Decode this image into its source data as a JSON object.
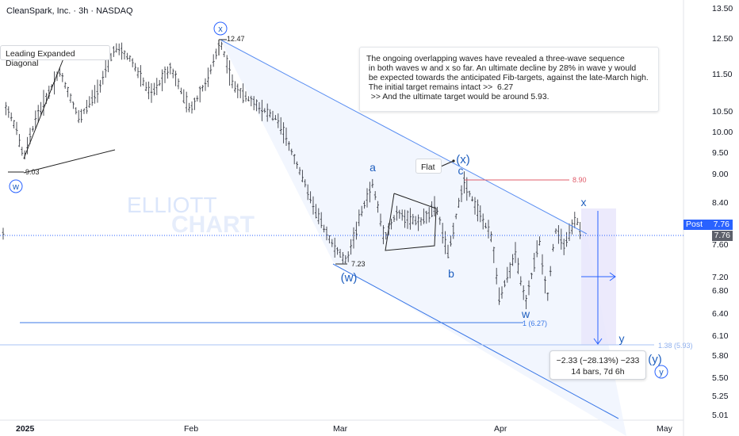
{
  "header": {
    "title": "CleanSpark, Inc. · 3h · NASDAQ"
  },
  "colors": {
    "wave_blue": "#1f5fbf",
    "channel_blue": "#2962ff",
    "target_red": "#e05c6a",
    "candle": "#333333",
    "price_tag": "#2962ff"
  },
  "chart_data": {
    "type": "ohlc",
    "title": "CleanSpark, Inc. · 3h · NASDAQ",
    "y_axis": {
      "ticks": [
        13.5,
        12.5,
        11.5,
        10.5,
        10.0,
        9.5,
        9.0,
        8.4,
        7.6,
        7.2,
        6.8,
        6.4,
        6.1,
        5.8,
        5.5,
        5.25,
        5.01
      ],
      "scale": "log"
    },
    "x_axis": {
      "ticks": [
        "2025",
        "Feb",
        "Mar",
        "Apr",
        "May"
      ]
    },
    "current_price": {
      "post_label": "Post",
      "post_value": "7.76",
      "last_value": "7.76"
    },
    "key_levels": [
      {
        "label": "12.47",
        "wave": "x"
      },
      {
        "label": "9.03",
        "wave": "w"
      },
      {
        "label": "7.23",
        "wave": "(w)"
      },
      {
        "label": "8.90",
        "wave": "(x)"
      },
      {
        "label": "1 (6.27)",
        "type": "fib_target"
      },
      {
        "label": "1.38 (5.93)",
        "type": "fib_target"
      }
    ],
    "measurement": {
      "change": "−2.33 (−28.13%) −233",
      "duration": "14 bars, 7d 6h"
    }
  },
  "annotations": {
    "leading_diagonal": "Leading Expanded Diagonal",
    "flat": "Flat",
    "note_lines": [
      "The ongoing overlapping waves have revealed a three-wave sequence",
      " in both waves w and x so far. An ultimate decline by 28% in wave y would",
      " be expected towards the anticipated Fib-targets, against the late-March high.",
      "",
      " The initial target remains intact >>  6.27",
      "  >> And the ultimate target would be around 5.93."
    ],
    "waves": {
      "w_circle": "w",
      "x_circle": "x",
      "w_paren": "(w)",
      "x_paren": "(x)",
      "y_paren": "(y)",
      "y_circle": "y",
      "a": "a",
      "b": "b",
      "c": "c",
      "w_small": "w",
      "x_small": "x",
      "y_small": "y"
    },
    "watermark": [
      "ELLIOTT",
      "CHART"
    ]
  }
}
